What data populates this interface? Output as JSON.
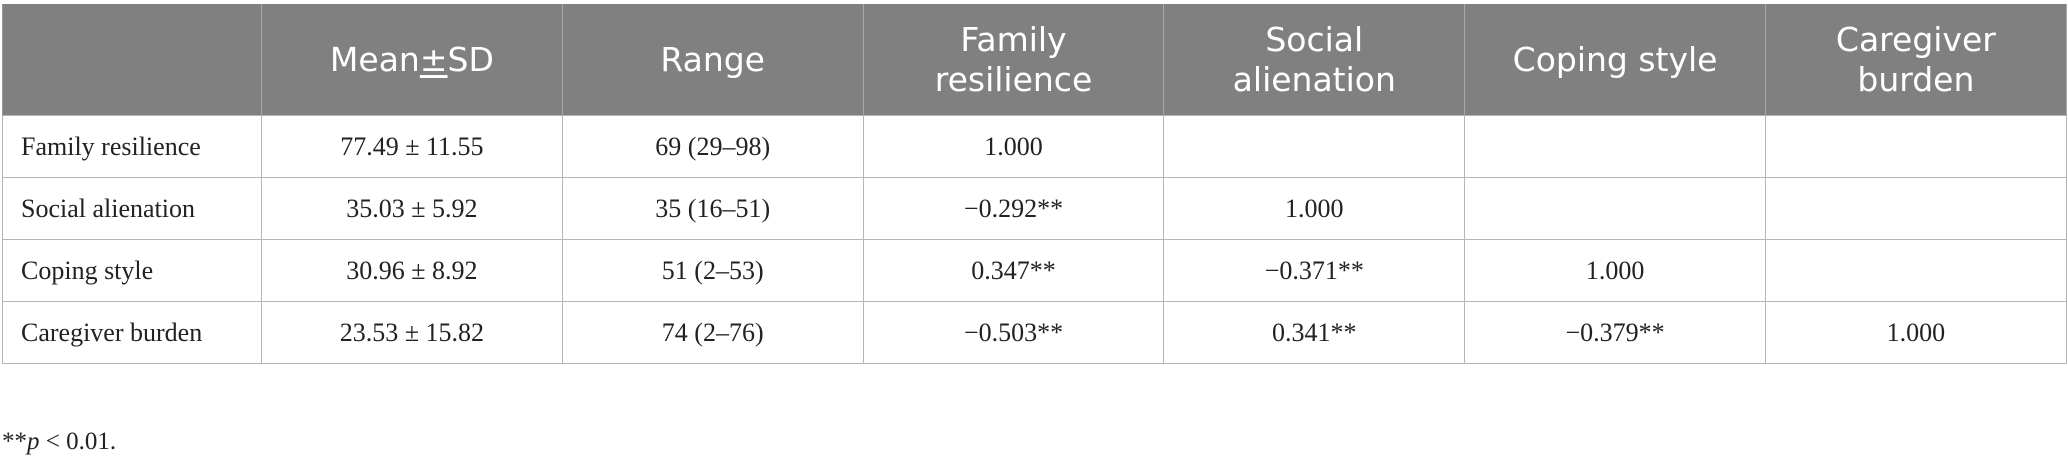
{
  "table": {
    "headers": [
      "",
      "Mean±SD",
      "Range",
      "Family resilience",
      "Social alienation",
      "Coping style",
      "Caregiver burden"
    ],
    "header_lines": {
      "mean_pre": "Mean",
      "mean_pm": "±",
      "mean_post": "SD",
      "range": "Range",
      "family_1": "Family",
      "family_2": "resilience",
      "social_1": "Social",
      "social_2": "alienation",
      "coping": "Coping style",
      "caregiver_1": "Caregiver",
      "caregiver_2": "burden"
    },
    "rows": [
      [
        "Family resilience",
        "77.49 ± 11.55",
        "69 (29–98)",
        "1.000",
        "",
        "",
        ""
      ],
      [
        "Social alienation",
        "35.03 ± 5.92",
        "35 (16–51)",
        "−0.292**",
        "1.000",
        "",
        ""
      ],
      [
        "Coping style",
        "30.96 ± 8.92",
        "51 (2–53)",
        "0.347**",
        "−0.371**",
        "1.000",
        ""
      ],
      [
        "Caregiver burden",
        "23.53 ± 15.82",
        "74 (2–76)",
        "−0.503**",
        "0.341**",
        "−0.379**",
        "1.000"
      ]
    ]
  },
  "footnote": {
    "prefix": "**",
    "variable": "p",
    "rest": " < 0.01."
  }
}
